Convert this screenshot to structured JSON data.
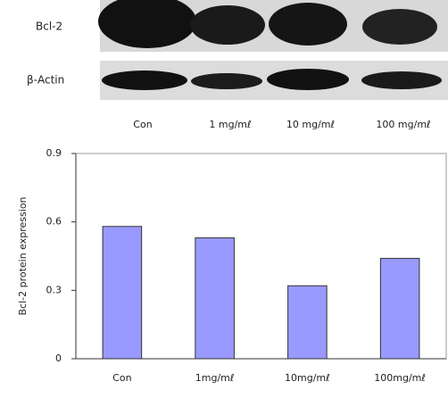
{
  "blot": {
    "rows": [
      "Bcl-2",
      "β-Actin"
    ],
    "lanes": [
      "Con",
      "1 mg/mℓ",
      "10 mg/mℓ",
      "100 mg/mℓ"
    ]
  },
  "chart_data": {
    "type": "bar",
    "y_label": "Bcl-2 protein expression",
    "categories": [
      "Con",
      "1mg/mℓ",
      "10mg/mℓ",
      "100mg/mℓ"
    ],
    "values": [
      0.58,
      0.53,
      0.32,
      0.44
    ],
    "color": "#9999ff",
    "ylim": [
      0,
      0.9
    ],
    "yticks": [
      0,
      0.3,
      0.6,
      0.9
    ],
    "grid": false
  }
}
